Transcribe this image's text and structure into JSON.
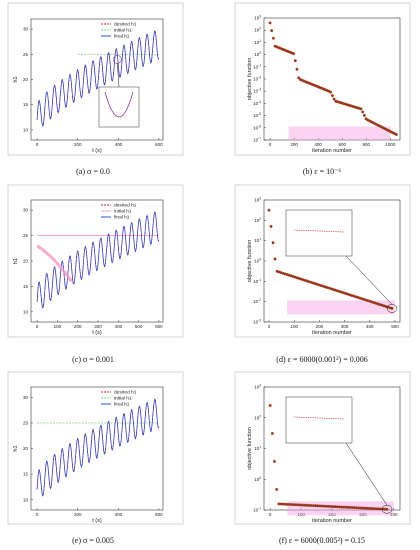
{
  "chart_data": [
    {
      "type": "line",
      "panel": "a",
      "caption": "(a)  σ = 0.0",
      "xlabel": "t (s)",
      "ylabel": "h1",
      "xlim": [
        -30,
        620
      ],
      "ylim": [
        8,
        32
      ],
      "xticks": [
        0,
        200,
        400,
        600
      ],
      "yticks": [
        10,
        15,
        20,
        25,
        30
      ],
      "legend": [
        "desired h1",
        "initial h1",
        "final h1"
      ],
      "series": [
        {
          "name": "desired h1",
          "color": "#d62728",
          "style": "dashed",
          "trend_start": 12,
          "trend_end": 27,
          "amplitude": 3,
          "period": 38
        },
        {
          "name": "initial h1",
          "color": "#8fd18f",
          "style": "dashed",
          "constant": 25,
          "x_from": 200
        },
        {
          "name": "final h1",
          "color": "#1f3fbf",
          "style": "solid",
          "trend_start": 12,
          "trend_end": 27,
          "amplitude": 3,
          "period": 38
        }
      ],
      "has_inset": true
    },
    {
      "type": "scatter",
      "panel": "b",
      "caption": "(b)  ε = 10⁻⁶",
      "xlabel": "iteration number",
      "ylabel": "objective function",
      "xlim": [
        -50,
        1080
      ],
      "log_y": true,
      "ylim_exp": [
        -7,
        3
      ],
      "xticks": [
        0,
        200,
        400,
        600,
        800,
        1000
      ],
      "yticks_exp": [
        -7,
        -6,
        -5,
        -4,
        -3,
        -2,
        -1,
        0,
        1,
        2,
        3
      ],
      "marker_color": "#8b3a1a",
      "highlight": "#f4a0e0",
      "description": "decreasing step-like curve from ~1e2.5 to ~1e-6.6"
    },
    {
      "type": "line",
      "panel": "c",
      "caption": "(c)  σ = 0.001",
      "xlabel": "t (s)",
      "ylabel": "h1",
      "xlim": [
        -30,
        620
      ],
      "ylim": [
        8,
        32
      ],
      "xticks": [
        0,
        100,
        200,
        300,
        400,
        500,
        600
      ],
      "yticks": [
        10,
        15,
        20,
        25,
        30
      ],
      "legend": [
        "desired h1",
        "initial h1",
        "final h1"
      ],
      "series": [
        {
          "name": "desired h1",
          "color": "#d62728",
          "style": "dashed",
          "trend_start": 12,
          "trend_end": 27,
          "amplitude": 3,
          "period": 38
        },
        {
          "name": "initial h1",
          "color": "#f49ac1",
          "style": "solid",
          "constant": 25
        },
        {
          "name": "final h1",
          "color": "#1f3fbf",
          "style": "solid",
          "trend_start": 12,
          "trend_end": 27,
          "amplitude": 3,
          "period": 38
        }
      ],
      "has_inset": false
    },
    {
      "type": "scatter",
      "panel": "d",
      "caption": "(d)  ε = 6000(0.001²) = 0.006",
      "xlabel": "iteration number",
      "ylabel": "objective function",
      "xlim": [
        -20,
        520
      ],
      "log_y": true,
      "ylim_exp": [
        -3,
        3
      ],
      "xticks": [
        0,
        100,
        200,
        300,
        400,
        500
      ],
      "yticks_exp": [
        -3,
        -2,
        -1,
        0,
        1,
        2,
        3
      ],
      "marker_color": "#8b3a1a",
      "highlight": "#f4a0e0",
      "has_inset": true
    },
    {
      "type": "line",
      "panel": "e",
      "caption": "(e)  σ = 0.005",
      "xlabel": "t (s)",
      "ylabel": "h1",
      "xlim": [
        -30,
        620
      ],
      "ylim": [
        8,
        32
      ],
      "xticks": [
        0,
        200,
        400,
        600
      ],
      "yticks": [
        10,
        15,
        20,
        25,
        30
      ],
      "legend": [
        "desired h1",
        "initial h1",
        "final h1"
      ],
      "series": [
        {
          "name": "desired h1",
          "color": "#d62728",
          "style": "dashed",
          "trend_start": 12,
          "trend_end": 27,
          "amplitude": 3,
          "period": 38
        },
        {
          "name": "initial h1",
          "color": "#8fd18f",
          "style": "dashed",
          "constant": 25
        },
        {
          "name": "final h1",
          "color": "#1f3fbf",
          "style": "solid",
          "trend_start": 12,
          "trend_end": 27,
          "amplitude": 3,
          "period": 38
        }
      ],
      "has_inset": false
    },
    {
      "type": "scatter",
      "panel": "f",
      "caption": "(f)  ε = 6000(0.005²) = 0.15",
      "xlabel": "iteration number",
      "ylabel": "objective function",
      "xlim": [
        -20,
        420
      ],
      "log_y": true,
      "ylim_exp": [
        -1,
        3
      ],
      "xticks": [
        0,
        100,
        200,
        300,
        400
      ],
      "yticks_exp": [
        -1,
        0,
        1,
        2,
        3
      ],
      "marker_color": "#8b3a1a",
      "highlight": "#f4a0e0",
      "has_inset": true
    }
  ]
}
